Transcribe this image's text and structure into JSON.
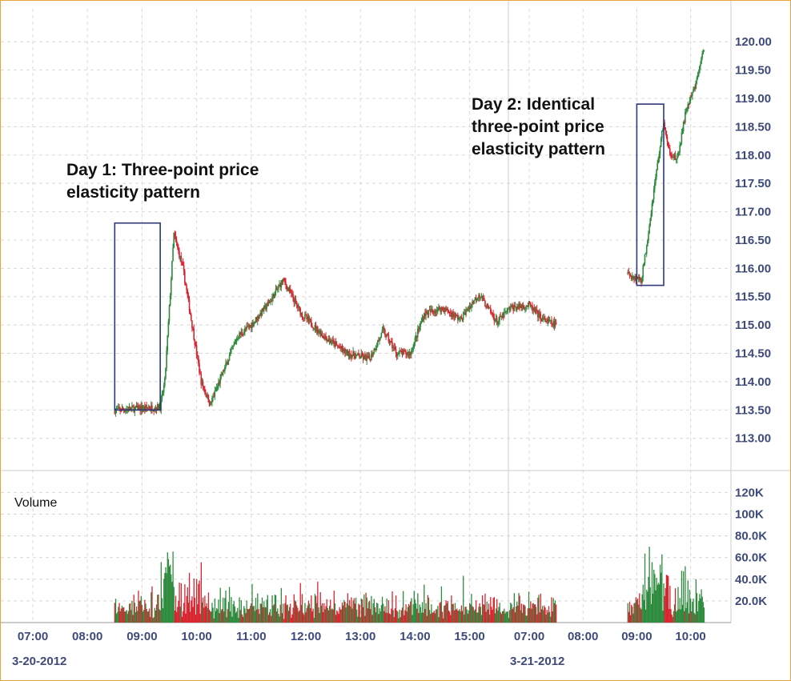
{
  "chart_data": {
    "type": "candlestick",
    "price_axis": {
      "ylim": [
        112.6,
        120.3
      ],
      "ticks": [
        113.0,
        113.5,
        114.0,
        114.5,
        115.0,
        115.5,
        116.0,
        116.5,
        117.0,
        117.5,
        118.0,
        118.5,
        119.0,
        119.5,
        120.0
      ],
      "tick_labels": [
        "113.00",
        "113.50",
        "114.00",
        "114.50",
        "115.00",
        "115.50",
        "116.00",
        "116.50",
        "117.00",
        "117.50",
        "118.00",
        "118.50",
        "119.00",
        "119.50",
        "120.00"
      ]
    },
    "volume_axis": {
      "title": "Volume",
      "ylim": [
        0,
        138000
      ],
      "ticks": [
        20000,
        40000,
        60000,
        80000,
        100000,
        120000
      ],
      "tick_labels": [
        "20.0K",
        "40.0K",
        "60.0K",
        "80.0K",
        "100K",
        "120K"
      ]
    },
    "time_axis": {
      "day1": {
        "date": "3-20-2012",
        "hours": [
          "07:00",
          "08:00",
          "09:00",
          "10:00",
          "11:00",
          "12:00",
          "13:00",
          "14:00",
          "15:00"
        ]
      },
      "day2": {
        "date": "3-21-2012",
        "hours": [
          "07:00",
          "08:00",
          "09:00",
          "10:00"
        ]
      }
    },
    "day1_anchors": [
      {
        "t": "08:30",
        "p": 113.5
      },
      {
        "t": "09:20",
        "p": 113.55
      },
      {
        "t": "09:25",
        "p": 114.0
      },
      {
        "t": "09:35",
        "p": 116.6
      },
      {
        "t": "09:45",
        "p": 116.0
      },
      {
        "t": "09:55",
        "p": 115.0
      },
      {
        "t": "10:05",
        "p": 114.0
      },
      {
        "t": "10:15",
        "p": 113.6
      },
      {
        "t": "10:30",
        "p": 114.2
      },
      {
        "t": "10:45",
        "p": 114.8
      },
      {
        "t": "11:00",
        "p": 115.0
      },
      {
        "t": "11:20",
        "p": 115.4
      },
      {
        "t": "11:35",
        "p": 115.8
      },
      {
        "t": "11:55",
        "p": 115.2
      },
      {
        "t": "12:20",
        "p": 114.8
      },
      {
        "t": "12:45",
        "p": 114.5
      },
      {
        "t": "13:10",
        "p": 114.4
      },
      {
        "t": "13:25",
        "p": 114.9
      },
      {
        "t": "13:40",
        "p": 114.5
      },
      {
        "t": "13:55",
        "p": 114.5
      },
      {
        "t": "14:10",
        "p": 115.2
      },
      {
        "t": "14:30",
        "p": 115.3
      },
      {
        "t": "14:50",
        "p": 115.1
      },
      {
        "t": "15:10",
        "p": 115.55
      },
      {
        "t": "15:30",
        "p": 115.05
      },
      {
        "t": "15:45",
        "p": 115.3
      },
      {
        "t": "16:05",
        "p": 115.35
      },
      {
        "t": "16:20",
        "p": 115.1
      },
      {
        "t": "16:35",
        "p": 115.0
      }
    ],
    "day2_anchors": [
      {
        "t": "08:50",
        "p": 115.9
      },
      {
        "t": "09:05",
        "p": 115.8
      },
      {
        "t": "09:10",
        "p": 116.3
      },
      {
        "t": "09:20",
        "p": 117.5
      },
      {
        "t": "09:30",
        "p": 118.6
      },
      {
        "t": "09:35",
        "p": 118.1
      },
      {
        "t": "09:45",
        "p": 117.9
      },
      {
        "t": "09:55",
        "p": 118.8
      },
      {
        "t": "10:05",
        "p": 119.2
      },
      {
        "t": "10:15",
        "p": 119.9
      }
    ],
    "annotations": [
      {
        "label": [
          "Day 1: Three-point price",
          "elasticity pattern"
        ],
        "box": {
          "t0": "08:30",
          "t1": "09:20",
          "p0": 113.5,
          "p1": 116.8
        }
      },
      {
        "label": [
          "Day 2: Identical",
          "three-point price",
          "elasticity pattern"
        ],
        "box": {
          "t0": "09:00",
          "t1": "09:30",
          "p0": 115.7,
          "p1": 118.9
        }
      }
    ],
    "colors": {
      "up": "#2e8b3e",
      "down": "#d8242f",
      "annotation_box": "#2f3878",
      "axis_text": "#3d4a7a",
      "grid": "#d8d8d8"
    },
    "grid": true
  }
}
